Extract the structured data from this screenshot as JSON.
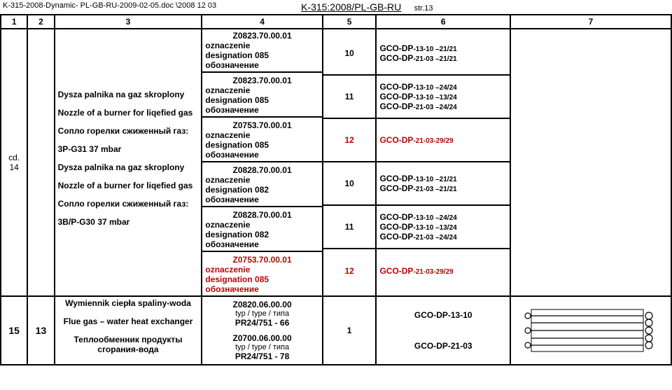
{
  "header": {
    "path": "K-315-2008-Dynamic- PL-GB-RU-2009-02-05.doc \\2008 12 03",
    "doc_id": "K-315:2008/PL-GB-RU",
    "page_label": "str.13"
  },
  "columns": [
    "1",
    "2",
    "3",
    "4",
    "5",
    "6",
    "7"
  ],
  "row1": {
    "c1": "cd.\n14",
    "c3a": {
      "p1": "Dysza palnika na gaz skroplony",
      "p2": "Nozzle of a burner for liqefied gas",
      "p3": "Сопло горелки сжиженный газ:",
      "p4": "3P-G31 37 mbar"
    },
    "c3b": {
      "p1": "Dysza palnika na gaz skroplony",
      "p2": "Nozzle of a burner for liqefied gas",
      "p3": "Сопло горелки сжиженный газ:",
      "p4": "3B/P-G30 37 mbar"
    },
    "c4": [
      {
        "code": "Z0823.70.00.01",
        "l1": "oznaczenie",
        "l2": "designation        085",
        "l3": "обозначение",
        "red": false
      },
      {
        "code": "Z0823.70.00.01",
        "l1": "oznaczenie",
        "l2": "designation        085",
        "l3": "обозначение",
        "red": false
      },
      {
        "code": "Z0753.70.00.01",
        "l1": "oznaczenie",
        "l2": "designation        085",
        "l3": "обозначение",
        "red": false
      },
      {
        "code": "Z0828.70.00.01",
        "l1": "oznaczenie",
        "l2": "designation        082",
        "l3": "обозначение",
        "red": false
      },
      {
        "code": "Z0828.70.00.01",
        "l1": "oznaczenie",
        "l2": "designation        082",
        "l3": "обозначение",
        "red": false
      },
      {
        "code": "Z0753.70.00.01",
        "l1": "oznaczenie",
        "l2": "designation        085",
        "l3": "обозначение",
        "red": true
      }
    ],
    "c5": [
      "10",
      "11",
      "12",
      "10",
      "11",
      "12"
    ],
    "c5red": [
      false,
      false,
      true,
      false,
      false,
      true
    ],
    "c6": [
      [
        "GCO-DP-13-10 –21/21",
        "GCO-DP-21-03 –21/21"
      ],
      [
        "GCO-DP-13-10 –24/24",
        "GCO-DP-13-10 –13/24",
        "GCO-DP-21-03 –24/24"
      ],
      [
        "GCO-DP-21-03-29/29"
      ],
      [
        "GCO-DP-13-10 –21/21",
        "GCO-DP-21-03 –21/21"
      ],
      [
        "GCO-DP-13-10 –24/24",
        "GCO-DP-13-10 –13/24",
        "GCO-DP-21-03 –24/24"
      ],
      [
        "GCO-DP-21-03-29/29"
      ]
    ],
    "c6red": [
      false,
      false,
      true,
      false,
      false,
      true
    ]
  },
  "row2": {
    "c1": "15",
    "c2": "13",
    "c3": {
      "p1": "Wymiennik ciepła spaliny-woda",
      "p2": "Flue gas – water heat exchanger",
      "p3": "Теплообменник продукты сгорания-вода"
    },
    "c4": [
      {
        "code": "Z0820.06.00.00",
        "sub": "typ / type / типа",
        "model": "PR24/751 - 66"
      },
      {
        "code": "Z0700.06.00.00",
        "sub": "typ / type / типа",
        "model": "PR24/751 - 78"
      }
    ],
    "c5": "1",
    "c6": [
      "GCO-DP-13-10",
      "GCO-DP-21-03"
    ]
  }
}
